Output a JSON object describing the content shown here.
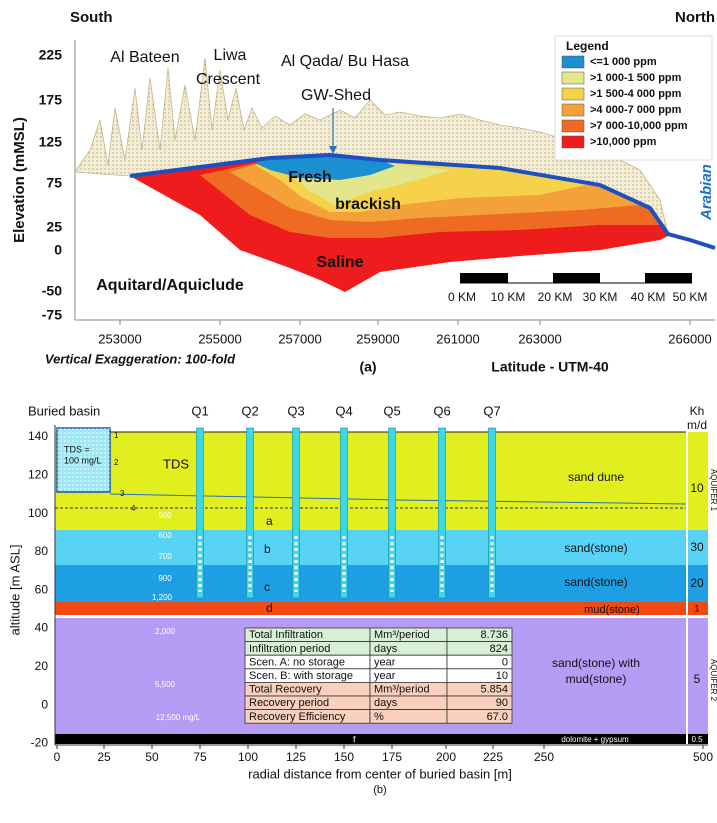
{
  "panel_a": {
    "south": "South",
    "north": "North",
    "y_label": "Elevation (mMSL)",
    "yticks": [
      "225",
      "175",
      "125",
      "75",
      "25",
      "0",
      "-50",
      "-75"
    ],
    "xticks": [
      "253000",
      "255000",
      "257000",
      "259000",
      "261000",
      "263000",
      "266000"
    ],
    "places": {
      "al_bateen": "Al Bateen",
      "liwa": [
        "Liwa",
        "Crescent"
      ],
      "al_qada": "Al Qada/ Bu Hasa",
      "gw_shed": "GW-Shed"
    },
    "zones": {
      "fresh": "Fresh",
      "brackish": "brackish",
      "saline": "Saline",
      "aquitard": "Aquitard/Aquiclude",
      "gulf": "Arabian Gulf"
    },
    "legend": {
      "title": "Legend",
      "items": [
        {
          "label": "<=1 000 ppm",
          "color": "#1b8fcf"
        },
        {
          "label": ">1 000-1 500 ppm",
          "color": "#e3e68a"
        },
        {
          "label": ">1 500-4 000 ppm",
          "color": "#f6d24a"
        },
        {
          "label": ">4 000-7 000 ppm",
          "color": "#f5a13a"
        },
        {
          "label": ">7 000-10,000 ppm",
          "color": "#ef6a22"
        },
        {
          "label": ">10,000 ppm",
          "color": "#ee1c1c"
        }
      ]
    },
    "scale": [
      "0 KM",
      "10 KM",
      "20 KM",
      "30 KM",
      "40 KM",
      "50 KM"
    ],
    "note": "Vertical Exaggeration: 100-fold",
    "caption": "(a)",
    "x_label": "Latitude - UTM-40"
  },
  "panel_b": {
    "basin": "Buried basin",
    "wells": [
      "Q1",
      "Q2",
      "Q3",
      "Q4",
      "Q5",
      "Q6",
      "Q7"
    ],
    "kh": "Kh",
    "kh_unit": "m/d",
    "y_label": "altitude [m ASL]",
    "yticks": [
      "140",
      "120",
      "100",
      "80",
      "60",
      "40",
      "20",
      "0",
      "-20"
    ],
    "xticks": [
      "0",
      "25",
      "50",
      "75",
      "100",
      "125",
      "150",
      "175",
      "200",
      "225",
      "250",
      "500"
    ],
    "x_label": "radial distance from center of buried basin [m]",
    "caption": "(b)",
    "tds": "TDS",
    "tds_box": [
      "TDS =",
      "100 mg/L"
    ],
    "markers": [
      "1",
      "2",
      "3",
      "4"
    ],
    "layer_letters": [
      "a",
      "b",
      "c",
      "d",
      "f"
    ],
    "concentrations": [
      "500",
      "600",
      "700",
      "900",
      "1,200",
      "2,000",
      "5,500",
      "12,500 mg/L"
    ],
    "layers": [
      "sand dune",
      "sand(stone)",
      "sand(stone)",
      "mud(stone)",
      "sand(stone) with",
      "mud(stone)",
      "dolomite + gypsum"
    ],
    "kh_values": [
      "10",
      "30",
      "20",
      "1",
      "5",
      "0.5"
    ],
    "aquifers": [
      "AQUIFER 1",
      "AQUIFER 2"
    ],
    "table": {
      "rows": [
        [
          "Total  Infiltration",
          "Mm³/period",
          "8.736"
        ],
        [
          "Infiltration period",
          "days",
          "824"
        ],
        [
          "Scen. A: no storage",
          "year",
          "0"
        ],
        [
          "Scen. B: with storage",
          "year",
          "10"
        ],
        [
          "Total Recovery",
          "Mm³/period",
          "5.854"
        ],
        [
          "Recovery period",
          "days",
          "90"
        ],
        [
          "Recovery Efficiency",
          "%",
          "67.0"
        ]
      ]
    }
  }
}
